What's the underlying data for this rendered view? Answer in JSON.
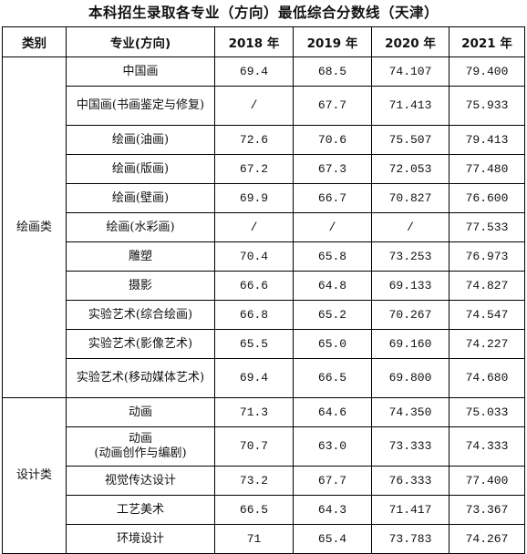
{
  "title": "本科招生录取各专业（方向）最低综合分数线（天津）",
  "headers": {
    "category": "类别",
    "major": "专业(方向)",
    "years": [
      "2018 年",
      "2019 年",
      "2020 年",
      "2021 年"
    ]
  },
  "groups": [
    {
      "category": "绘画类",
      "rows": [
        {
          "major": "中国画",
          "scores": [
            "69.4",
            "68.5",
            "74.107",
            "79.400"
          ]
        },
        {
          "major": "中国画(书画鉴定与修复)",
          "scores": [
            "/",
            "67.7",
            "71.413",
            "75.933"
          ]
        },
        {
          "major": "绘画(油画)",
          "scores": [
            "72.6",
            "70.6",
            "75.507",
            "79.413"
          ]
        },
        {
          "major": "绘画(版画)",
          "scores": [
            "67.2",
            "67.3",
            "72.053",
            "77.480"
          ]
        },
        {
          "major": "绘画(壁画)",
          "scores": [
            "69.9",
            "66.7",
            "70.827",
            "76.600"
          ]
        },
        {
          "major": "绘画(水彩画)",
          "scores": [
            "/",
            "/",
            "/",
            "77.533"
          ]
        },
        {
          "major": "雕塑",
          "scores": [
            "70.4",
            "65.8",
            "73.253",
            "76.973"
          ]
        },
        {
          "major": "摄影",
          "scores": [
            "66.6",
            "64.8",
            "69.133",
            "74.827"
          ]
        },
        {
          "major": "实验艺术(综合绘画)",
          "scores": [
            "66.8",
            "65.2",
            "70.267",
            "74.547"
          ]
        },
        {
          "major": "实验艺术(影像艺术)",
          "scores": [
            "65.5",
            "65.0",
            "69.160",
            "74.227"
          ]
        },
        {
          "major": "实验艺术(移动媒体艺术)",
          "scores": [
            "69.4",
            "66.5",
            "69.800",
            "74.680"
          ]
        }
      ]
    },
    {
      "category": "设计类",
      "rows": [
        {
          "major": "动画",
          "scores": [
            "71.3",
            "64.6",
            "74.350",
            "75.033"
          ]
        },
        {
          "major": "动画\n(动画创作与编剧)",
          "scores": [
            "70.7",
            "63.0",
            "73.333",
            "74.333"
          ]
        },
        {
          "major": "视觉传达设计",
          "scores": [
            "73.2",
            "67.7",
            "76.333",
            "77.400"
          ]
        },
        {
          "major": "工艺美术",
          "scores": [
            "66.5",
            "64.3",
            "71.417",
            "73.367"
          ]
        },
        {
          "major": "环境设计",
          "scores": [
            "71",
            "65.4",
            "73.783",
            "74.267"
          ]
        }
      ]
    }
  ]
}
